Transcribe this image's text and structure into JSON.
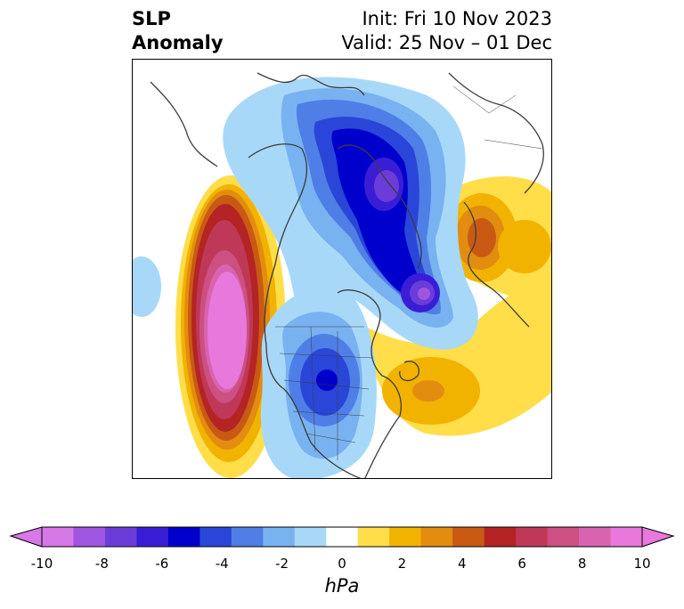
{
  "title": {
    "left_line1": "SLP",
    "left_line2": "Anomaly",
    "right_line1": "Init: Fri 10 Nov 2023",
    "right_line2": "Valid: 25 Nov – 01 Dec"
  },
  "colorbar": {
    "label": "hPa",
    "ticks": [
      "-10",
      "-8",
      "-6",
      "-4",
      "-2",
      "0",
      "2",
      "4",
      "6",
      "8",
      "10"
    ],
    "colors": [
      "#d678e6",
      "#a055e0",
      "#6c3cd8",
      "#3a1ed6",
      "#0000cc",
      "#2a46d8",
      "#4f7ee6",
      "#78b2f0",
      "#a8d8f8",
      "#ffffff",
      "#ffde4a",
      "#f2b200",
      "#e28c10",
      "#c85a14",
      "#b42424",
      "#c03858",
      "#cc5082",
      "#d864b0",
      "#e878dc"
    ],
    "extend_min_color": "#d678e6",
    "extend_max_color": "#e878dc"
  },
  "map": {
    "projection": "north polar stereographic",
    "field": "SLP anomaly"
  }
}
